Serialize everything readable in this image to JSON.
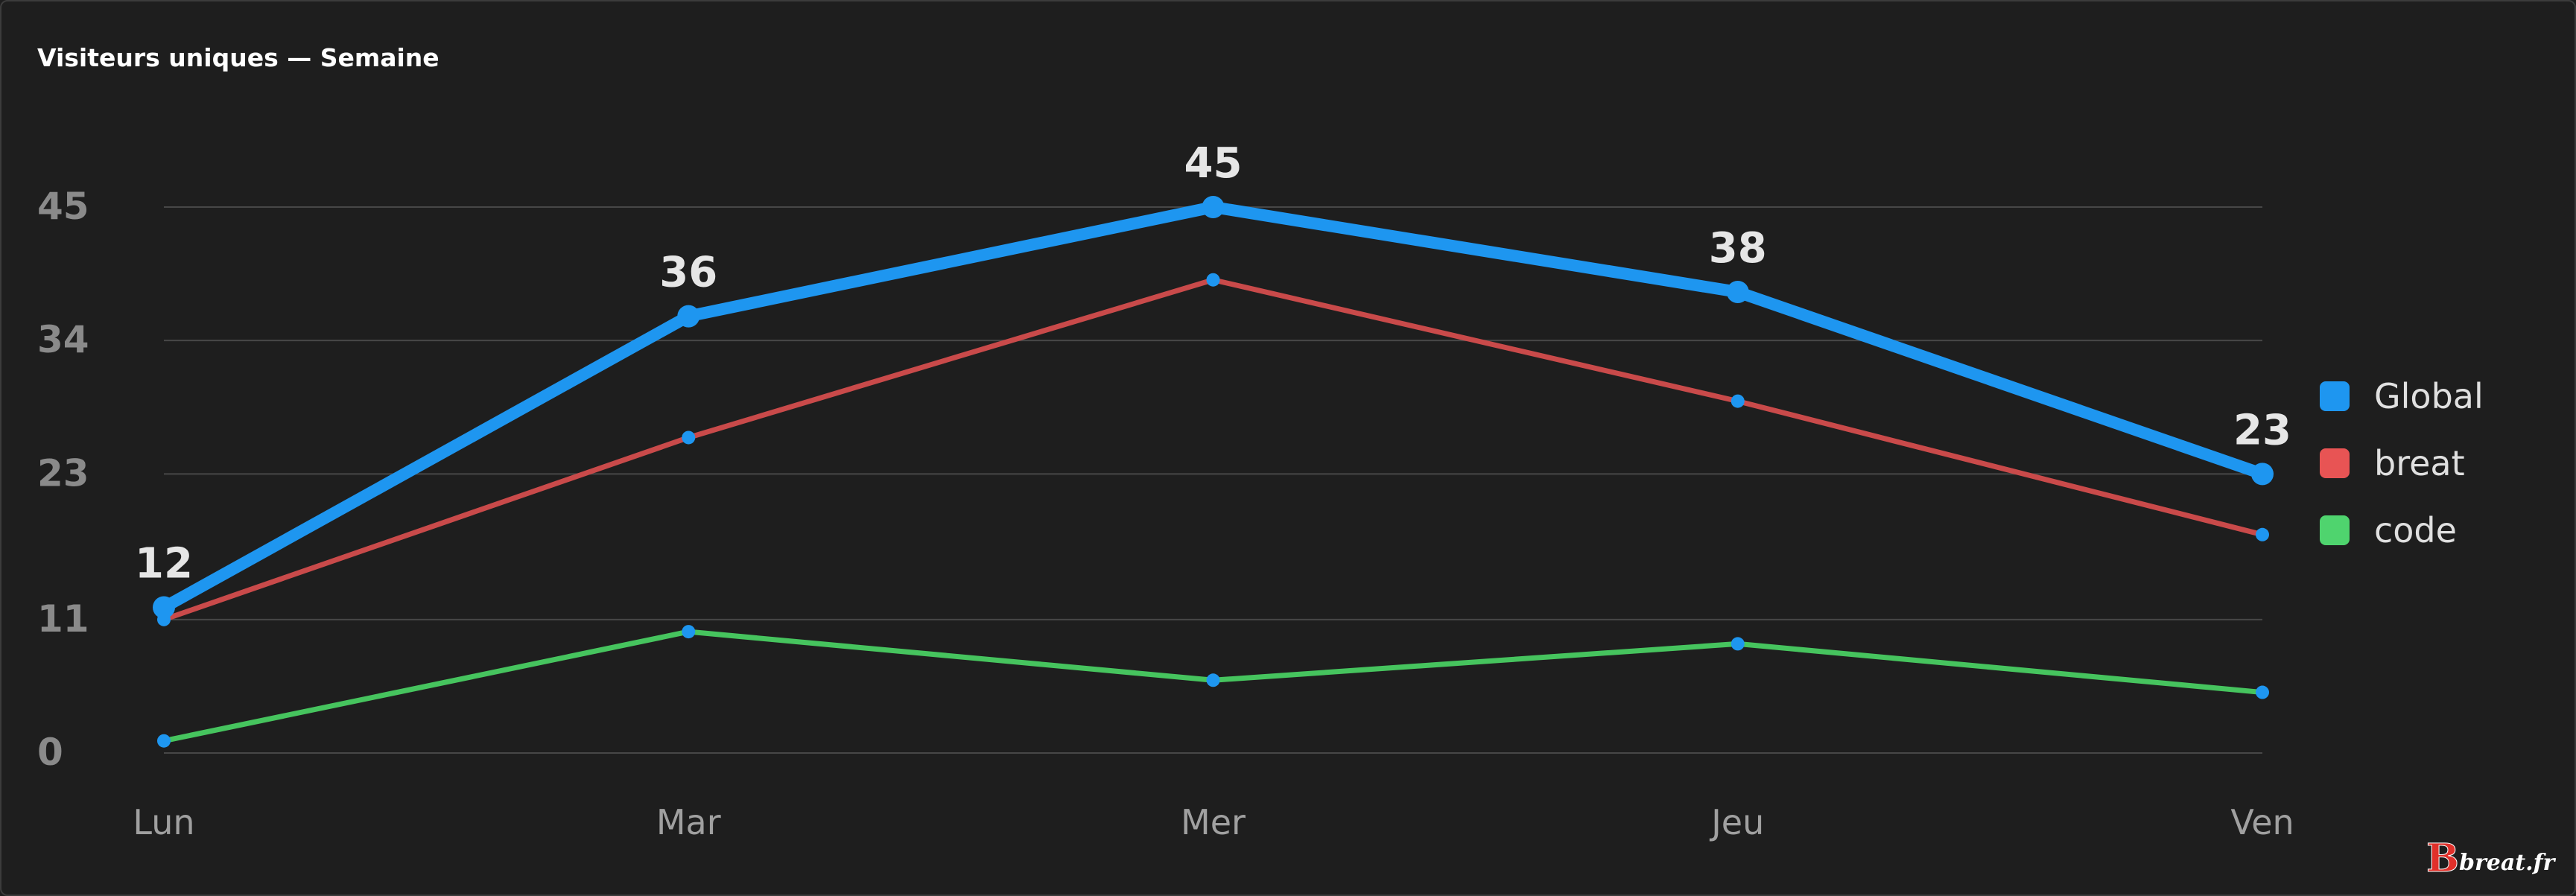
{
  "chart_data": {
    "type": "line",
    "title": "Visiteurs uniques — Semaine",
    "categories": [
      "Lun",
      "Mar",
      "Mer",
      "Jeu",
      "Ven"
    ],
    "y_ticks": [
      0,
      11,
      23,
      34,
      45
    ],
    "ylim": [
      0,
      45
    ],
    "grid": true,
    "legend_position": "right",
    "series": [
      {
        "name": "Global",
        "values": [
          12,
          36,
          45,
          38,
          23
        ],
        "color": "#1e96f0",
        "show_labels": true
      },
      {
        "name": "breat",
        "values": [
          11,
          26,
          39,
          29,
          18
        ],
        "color": "#c94a4a",
        "show_labels": false
      },
      {
        "name": "code",
        "values": [
          1,
          10,
          6,
          9,
          5
        ],
        "color": "#46c45e",
        "show_labels": false
      }
    ],
    "marker_color": "#1e96f0",
    "legend_colors": {
      "Global": "#1e96f0",
      "breat": "#e85454",
      "code": "#4fd46e"
    }
  },
  "watermark": {
    "text": "breat.fr",
    "letter": "B",
    "color": "#e0302a"
  }
}
